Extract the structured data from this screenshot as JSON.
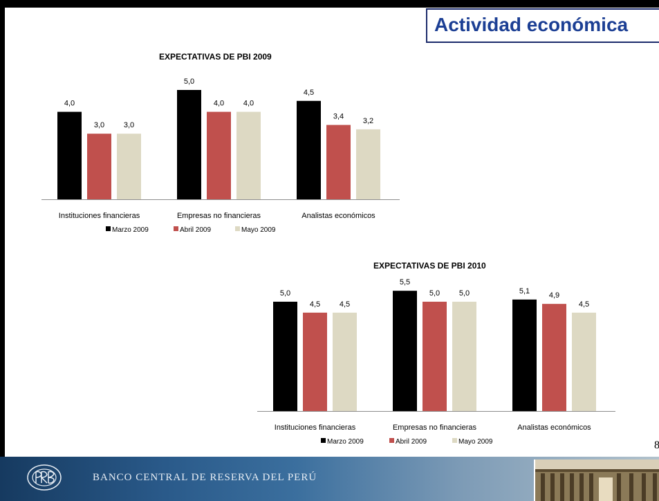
{
  "slide": {
    "title": "Actividad económica",
    "page_number": "8",
    "footer_text": "BANCO CENTRAL DE RESERVA DEL PERÚ"
  },
  "colors": {
    "marzo": "#000000",
    "abril": "#c0504d",
    "mayo": "#ddd9c3",
    "title": "#1c3f94"
  },
  "chart_data": [
    {
      "type": "bar",
      "title": "EXPECTATIVAS DE PBI 2009",
      "categories": [
        "Instituciones financieras",
        "Empresas no financieras",
        "Analistas económicos"
      ],
      "series": [
        {
          "name": "Marzo 2009",
          "values": [
            4.0,
            5.0,
            4.5
          ],
          "labels": [
            "4,0",
            "5,0",
            "4,5"
          ]
        },
        {
          "name": "Abril 2009",
          "values": [
            3.0,
            4.0,
            3.4
          ],
          "labels": [
            "3,0",
            "4,0",
            "3,4"
          ]
        },
        {
          "name": "Mayo 2009",
          "values": [
            3.0,
            4.0,
            3.2
          ],
          "labels": [
            "3,0",
            "4,0",
            "3,2"
          ]
        }
      ],
      "legend": "bottom"
    },
    {
      "type": "bar",
      "title": "EXPECTATIVAS DE PBI 2010",
      "categories": [
        "Instituciones financieras",
        "Empresas no financieras",
        "Analistas económicos"
      ],
      "series": [
        {
          "name": "Marzo 2009",
          "values": [
            5.0,
            5.5,
            5.1
          ],
          "labels": [
            "5,0",
            "5,5",
            "5,1"
          ]
        },
        {
          "name": "Abril 2009",
          "values": [
            4.5,
            5.0,
            4.9
          ],
          "labels": [
            "4,5",
            "5,0",
            "4,9"
          ]
        },
        {
          "name": "Mayo 2009",
          "values": [
            4.5,
            5.0,
            4.5
          ],
          "labels": [
            "4,5",
            "5,0",
            "4,5"
          ]
        }
      ],
      "legend": "bottom"
    }
  ]
}
